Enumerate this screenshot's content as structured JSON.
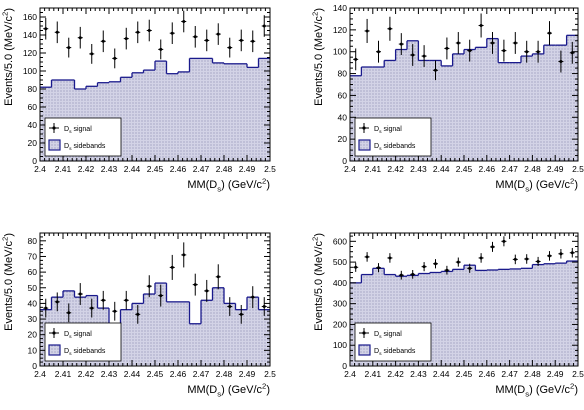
{
  "chart_data": [
    {
      "type": "histogram",
      "xlabel": "MM(D_s) (GeV/c^2)",
      "ylabel": "Events/5.0 (MeV/c^2)",
      "xlim": [
        2.4,
        2.5
      ],
      "ylim": [
        0,
        170
      ],
      "xticks": [
        2.4,
        2.41,
        2.42,
        2.43,
        2.44,
        2.45,
        2.46,
        2.47,
        2.48,
        2.49,
        2.5
      ],
      "yticks": [
        0,
        20,
        40,
        60,
        80,
        100,
        120,
        140,
        160
      ],
      "legend": {
        "placement": "bottom-left",
        "entries": [
          "D_s signal",
          "D_s sidebands"
        ]
      },
      "bin_edges": [
        2.4,
        2.405,
        2.41,
        2.415,
        2.42,
        2.425,
        2.43,
        2.435,
        2.44,
        2.445,
        2.45,
        2.455,
        2.46,
        2.465,
        2.47,
        2.475,
        2.48,
        2.485,
        2.49,
        2.495,
        2.5
      ],
      "sidebands": [
        82,
        90,
        90,
        80,
        83,
        87,
        88,
        93,
        98,
        101,
        111,
        97,
        99,
        114,
        114,
        109,
        108,
        108,
        104,
        114
      ],
      "signal": [
        {
          "x": 2.4025,
          "y": 147,
          "err": 12
        },
        {
          "x": 2.4075,
          "y": 143,
          "err": 12
        },
        {
          "x": 2.4125,
          "y": 126,
          "err": 11
        },
        {
          "x": 2.4175,
          "y": 137,
          "err": 12
        },
        {
          "x": 2.4225,
          "y": 119,
          "err": 11
        },
        {
          "x": 2.4275,
          "y": 133,
          "err": 12
        },
        {
          "x": 2.4325,
          "y": 114,
          "err": 11
        },
        {
          "x": 2.4375,
          "y": 136,
          "err": 12
        },
        {
          "x": 2.4425,
          "y": 143,
          "err": 12
        },
        {
          "x": 2.4475,
          "y": 145,
          "err": 12
        },
        {
          "x": 2.4525,
          "y": 124,
          "err": 11
        },
        {
          "x": 2.4575,
          "y": 142,
          "err": 12
        },
        {
          "x": 2.4625,
          "y": 155,
          "err": 12
        },
        {
          "x": 2.4675,
          "y": 138,
          "err": 12
        },
        {
          "x": 2.4725,
          "y": 134,
          "err": 12
        },
        {
          "x": 2.4775,
          "y": 141,
          "err": 12
        },
        {
          "x": 2.4825,
          "y": 126,
          "err": 11
        },
        {
          "x": 2.4875,
          "y": 134,
          "err": 12
        },
        {
          "x": 2.4925,
          "y": 133,
          "err": 12
        },
        {
          "x": 2.4975,
          "y": 150,
          "err": 12
        }
      ]
    },
    {
      "type": "histogram",
      "xlabel": "MM(D_s) (GeV/c^2)",
      "ylabel": "Events/5.0 (MeV/c^2)",
      "xlim": [
        2.4,
        2.5
      ],
      "ylim": [
        0,
        140
      ],
      "xticks": [
        2.4,
        2.41,
        2.42,
        2.43,
        2.44,
        2.45,
        2.46,
        2.47,
        2.48,
        2.49,
        2.5
      ],
      "yticks": [
        0,
        20,
        40,
        60,
        80,
        100,
        120,
        140
      ],
      "legend": {
        "placement": "bottom-left",
        "entries": [
          "D_s signal",
          "D_s sidebands"
        ]
      },
      "bin_edges": [
        2.4,
        2.405,
        2.41,
        2.415,
        2.42,
        2.425,
        2.43,
        2.435,
        2.44,
        2.445,
        2.45,
        2.455,
        2.46,
        2.465,
        2.47,
        2.475,
        2.48,
        2.485,
        2.49,
        2.495,
        2.5
      ],
      "sidebands": [
        78,
        86,
        86,
        92,
        102,
        110,
        92,
        92,
        87,
        98,
        102,
        104,
        112,
        90,
        90,
        96,
        98,
        106,
        106,
        115
      ],
      "signal": [
        {
          "x": 2.4025,
          "y": 93,
          "err": 10
        },
        {
          "x": 2.4075,
          "y": 119,
          "err": 11
        },
        {
          "x": 2.4125,
          "y": 100,
          "err": 10
        },
        {
          "x": 2.4175,
          "y": 121,
          "err": 11
        },
        {
          "x": 2.4225,
          "y": 107,
          "err": 10
        },
        {
          "x": 2.4275,
          "y": 97,
          "err": 10
        },
        {
          "x": 2.4325,
          "y": 96,
          "err": 10
        },
        {
          "x": 2.4375,
          "y": 83,
          "err": 9
        },
        {
          "x": 2.4425,
          "y": 103,
          "err": 10
        },
        {
          "x": 2.4475,
          "y": 108,
          "err": 10
        },
        {
          "x": 2.4525,
          "y": 101,
          "err": 10
        },
        {
          "x": 2.4575,
          "y": 124,
          "err": 11
        },
        {
          "x": 2.4625,
          "y": 108,
          "err": 10
        },
        {
          "x": 2.4675,
          "y": 101,
          "err": 10
        },
        {
          "x": 2.4725,
          "y": 108,
          "err": 10
        },
        {
          "x": 2.4775,
          "y": 100,
          "err": 10
        },
        {
          "x": 2.4825,
          "y": 100,
          "err": 10
        },
        {
          "x": 2.4875,
          "y": 117,
          "err": 11
        },
        {
          "x": 2.4925,
          "y": 91,
          "err": 10
        },
        {
          "x": 2.4975,
          "y": 99,
          "err": 10
        }
      ]
    },
    {
      "type": "histogram",
      "xlabel": "MM(D_s) (GeV/c^2)",
      "ylabel": "Events/5.0 (MeV/c^2)",
      "xlim": [
        2.4,
        2.5
      ],
      "ylim": [
        0,
        85
      ],
      "xticks": [
        2.4,
        2.41,
        2.42,
        2.43,
        2.44,
        2.45,
        2.46,
        2.47,
        2.48,
        2.49,
        2.5
      ],
      "yticks": [
        0,
        10,
        20,
        30,
        40,
        50,
        60,
        70,
        80
      ],
      "legend": {
        "placement": "bottom-left",
        "entries": [
          "D_s signal",
          "D_s sidebands"
        ]
      },
      "bin_edges": [
        2.4,
        2.405,
        2.41,
        2.415,
        2.42,
        2.425,
        2.43,
        2.435,
        2.44,
        2.445,
        2.45,
        2.455,
        2.46,
        2.465,
        2.47,
        2.475,
        2.48,
        2.485,
        2.49,
        2.495,
        2.5
      ],
      "sidebands": [
        36,
        44,
        48,
        44,
        45,
        37,
        27,
        36,
        40,
        46,
        53,
        41,
        41,
        27,
        42,
        50,
        40,
        36,
        44,
        36
      ],
      "signal": [
        {
          "x": 2.4025,
          "y": 37,
          "err": 6
        },
        {
          "x": 2.4075,
          "y": 41,
          "err": 6
        },
        {
          "x": 2.4125,
          "y": 34,
          "err": 6
        },
        {
          "x": 2.4175,
          "y": 46,
          "err": 7
        },
        {
          "x": 2.4225,
          "y": 37,
          "err": 6
        },
        {
          "x": 2.4275,
          "y": 42,
          "err": 6
        },
        {
          "x": 2.4325,
          "y": 35,
          "err": 6
        },
        {
          "x": 2.4375,
          "y": 42,
          "err": 6
        },
        {
          "x": 2.4425,
          "y": 33,
          "err": 6
        },
        {
          "x": 2.4475,
          "y": 51,
          "err": 7
        },
        {
          "x": 2.4525,
          "y": 45,
          "err": 7
        },
        {
          "x": 2.4575,
          "y": 63,
          "err": 8
        },
        {
          "x": 2.4625,
          "y": 71,
          "err": 8
        },
        {
          "x": 2.4675,
          "y": 52,
          "err": 7
        },
        {
          "x": 2.4725,
          "y": 48,
          "err": 7
        },
        {
          "x": 2.4775,
          "y": 57,
          "err": 8
        },
        {
          "x": 2.4825,
          "y": 38,
          "err": 6
        },
        {
          "x": 2.4875,
          "y": 33,
          "err": 6
        },
        {
          "x": 2.4925,
          "y": 44,
          "err": 7
        },
        {
          "x": 2.4975,
          "y": 38,
          "err": 6
        }
      ]
    },
    {
      "type": "histogram",
      "xlabel": "MM(D_s) (GeV/c^2)",
      "ylabel": "Events/5.0 (MeV/c^2)",
      "xlim": [
        2.4,
        2.5
      ],
      "ylim": [
        0,
        640
      ],
      "xticks": [
        2.4,
        2.41,
        2.42,
        2.43,
        2.44,
        2.45,
        2.46,
        2.47,
        2.48,
        2.49,
        2.5
      ],
      "yticks": [
        0,
        100,
        200,
        300,
        400,
        500,
        600
      ],
      "legend": {
        "placement": "bottom-left",
        "entries": [
          "D_s signal",
          "D_s sidebands"
        ]
      },
      "bin_edges": [
        2.4,
        2.405,
        2.41,
        2.415,
        2.42,
        2.425,
        2.43,
        2.435,
        2.44,
        2.445,
        2.45,
        2.455,
        2.46,
        2.465,
        2.47,
        2.475,
        2.48,
        2.485,
        2.49,
        2.495,
        2.5
      ],
      "sidebands": [
        400,
        440,
        470,
        440,
        432,
        436,
        445,
        450,
        455,
        465,
        485,
        460,
        462,
        465,
        467,
        470,
        488,
        492,
        495,
        505
      ],
      "signal": [
        {
          "x": 2.4025,
          "y": 475,
          "err": 22
        },
        {
          "x": 2.4075,
          "y": 525,
          "err": 23
        },
        {
          "x": 2.4125,
          "y": 473,
          "err": 22
        },
        {
          "x": 2.4175,
          "y": 520,
          "err": 23
        },
        {
          "x": 2.4225,
          "y": 437,
          "err": 21
        },
        {
          "x": 2.4275,
          "y": 441,
          "err": 21
        },
        {
          "x": 2.4325,
          "y": 478,
          "err": 22
        },
        {
          "x": 2.4375,
          "y": 492,
          "err": 22
        },
        {
          "x": 2.4425,
          "y": 461,
          "err": 21
        },
        {
          "x": 2.4475,
          "y": 500,
          "err": 22
        },
        {
          "x": 2.4525,
          "y": 470,
          "err": 22
        },
        {
          "x": 2.4575,
          "y": 520,
          "err": 23
        },
        {
          "x": 2.4625,
          "y": 573,
          "err": 24
        },
        {
          "x": 2.4675,
          "y": 600,
          "err": 24
        },
        {
          "x": 2.4725,
          "y": 513,
          "err": 23
        },
        {
          "x": 2.4775,
          "y": 515,
          "err": 23
        },
        {
          "x": 2.4825,
          "y": 503,
          "err": 22
        },
        {
          "x": 2.4875,
          "y": 530,
          "err": 23
        },
        {
          "x": 2.4925,
          "y": 540,
          "err": 23
        },
        {
          "x": 2.4975,
          "y": 545,
          "err": 23
        }
      ]
    }
  ]
}
